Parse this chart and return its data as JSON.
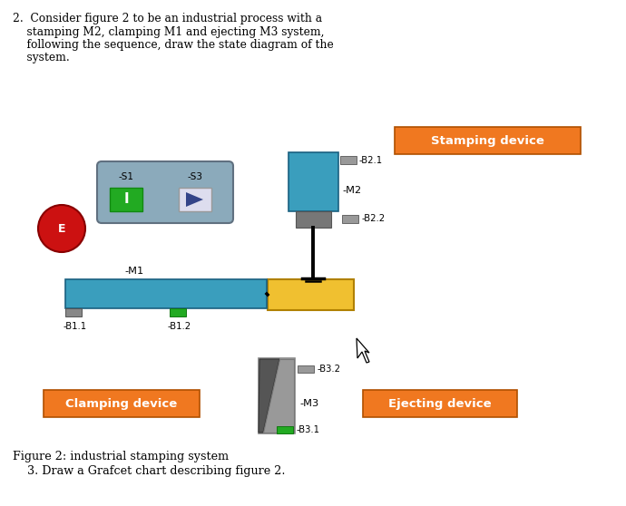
{
  "bg_color": "#ffffff",
  "orange_color": "#F07820",
  "teal_color": "#3A9EBD",
  "yellow_color": "#F0C030",
  "gray_color": "#888888",
  "red_color": "#CC1111",
  "green_color": "#22AA22",
  "ctrl_box_color": "#8BAABB",
  "title_lines": [
    "2.  Consider figure 2 to be an industrial process with a",
    "    stamping M2, clamping M1 and ejecting M3 system,",
    "    following the sequence, draw the state diagram of the",
    "    system."
  ],
  "caption1": "Figure 2: industrial stamping system",
  "caption2": "    3. Draw a Grafcet chart describing figure 2."
}
